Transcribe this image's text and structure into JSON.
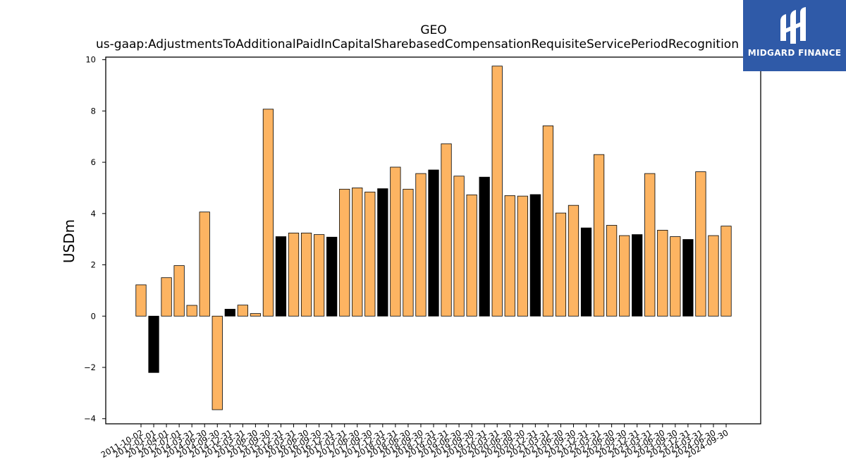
{
  "chart_data": {
    "type": "bar",
    "title": "GEO",
    "subtitle": "us-gaap:AdjustmentsToAdditionalPaidInCapitalSharebasedCompensationRequisiteServicePeriodRecognition",
    "ylabel": "USDm",
    "xlabel": "",
    "ylim": [
      -4.2,
      10.1
    ],
    "yticks": [
      -4,
      -2,
      0,
      2,
      4,
      6,
      8,
      10
    ],
    "ytick_labels": [
      "−4",
      "−2",
      "0",
      "2",
      "4",
      "6",
      "8",
      "10"
    ],
    "grid": false,
    "categories": [
      "2011-10-02",
      "2012-01-01",
      "2012-04-01",
      "2012-07-01",
      "2014-03-31",
      "2014-06-30",
      "2014-09-30",
      "2014-12-31",
      "2015-03-31",
      "2015-06-30",
      "2015-09-30",
      "2015-12-31",
      "2016-03-31",
      "2016-06-30",
      "2016-09-30",
      "2016-12-31",
      "2017-03-31",
      "2017-06-30",
      "2017-09-30",
      "2017-12-31",
      "2018-03-31",
      "2018-06-30",
      "2018-09-30",
      "2018-12-31",
      "2019-03-31",
      "2019-06-30",
      "2019-09-30",
      "2019-12-31",
      "2020-03-31",
      "2020-06-30",
      "2020-09-30",
      "2020-12-31",
      "2021-03-31",
      "2021-06-30",
      "2021-09-30",
      "2021-12-31",
      "2022-03-31",
      "2022-06-30",
      "2022-09-30",
      "2022-12-31",
      "2023-03-31",
      "2023-06-30",
      "2023-09-30",
      "2023-12-31",
      "2024-03-31",
      "2024-06-30",
      "2024-09-30"
    ],
    "tick_labels_shown": [
      "2011-10-02",
      "2012-01-01",
      "2012-04-01",
      "2012-07-01",
      "2014-03-31",
      "2014-06-30",
      "2014-09-30",
      "2014-12-31",
      "2015-03-31",
      "2015-06-30",
      "2015-09-30",
      "2015-12-31",
      "2016-03-31",
      "2016-06-30",
      "2016-09-30",
      "2016-12-31",
      "2017-03-31",
      "2017-06-30",
      "2017-09-30",
      "2017-12-31",
      "2018-03-31",
      "2018-06-30",
      "2018-09-30",
      "2018-12-31",
      "2019-03-31",
      "2019-06-30",
      "2019-09-30",
      "2019-12-31",
      "2020-03-31",
      "2020-06-30",
      "2020-09-30",
      "2020-12-31",
      "2021-03-31",
      "2021-06-30",
      "2021-09-30",
      "2021-12-31",
      "2022-03-31",
      "2022-06-30",
      "2022-09-30",
      "2022-12-31",
      "2023-03-31",
      "2023-06-30",
      "2023-09-30",
      "2023-12-31",
      "2024-03-31",
      "2024-06-30",
      "2024-09-30"
    ],
    "values": [
      1.22,
      -2.2,
      1.5,
      1.97,
      0.42,
      4.06,
      -3.65,
      0.27,
      0.43,
      0.1,
      8.07,
      3.1,
      3.24,
      3.24,
      3.18,
      3.08,
      4.95,
      5.0,
      4.84,
      4.97,
      5.81,
      4.95,
      5.56,
      5.7,
      6.72,
      5.46,
      4.73,
      5.42,
      9.75,
      4.7,
      4.68,
      4.74,
      7.42,
      4.02,
      4.32,
      3.44,
      6.3,
      3.54,
      3.14,
      3.18,
      5.56,
      3.35,
      3.1,
      2.99,
      5.63,
      3.14,
      3.51
    ],
    "bar_colors": [
      "#fdb462",
      "#000000",
      "#fdb462",
      "#fdb462",
      "#fdb462",
      "#fdb462",
      "#fdb462",
      "#000000",
      "#fdb462",
      "#fdb462",
      "#fdb462",
      "#000000",
      "#fdb462",
      "#fdb462",
      "#fdb462",
      "#000000",
      "#fdb462",
      "#fdb462",
      "#fdb462",
      "#000000",
      "#fdb462",
      "#fdb462",
      "#fdb462",
      "#000000",
      "#fdb462",
      "#fdb462",
      "#fdb462",
      "#000000",
      "#fdb462",
      "#fdb462",
      "#fdb462",
      "#000000",
      "#fdb462",
      "#fdb462",
      "#fdb462",
      "#000000",
      "#fdb462",
      "#fdb462",
      "#fdb462",
      "#000000",
      "#fdb462",
      "#fdb462",
      "#fdb462",
      "#000000",
      "#fdb462",
      "#fdb462",
      "#fdb462"
    ]
  },
  "logo": {
    "text": "MIDGARD FINANCE",
    "background": "#2f5aa8",
    "icon": "midgard-logo-icon"
  },
  "colors": {
    "bar_primary": "#fdb462",
    "bar_highlight": "#000000",
    "axis": "#000000"
  }
}
